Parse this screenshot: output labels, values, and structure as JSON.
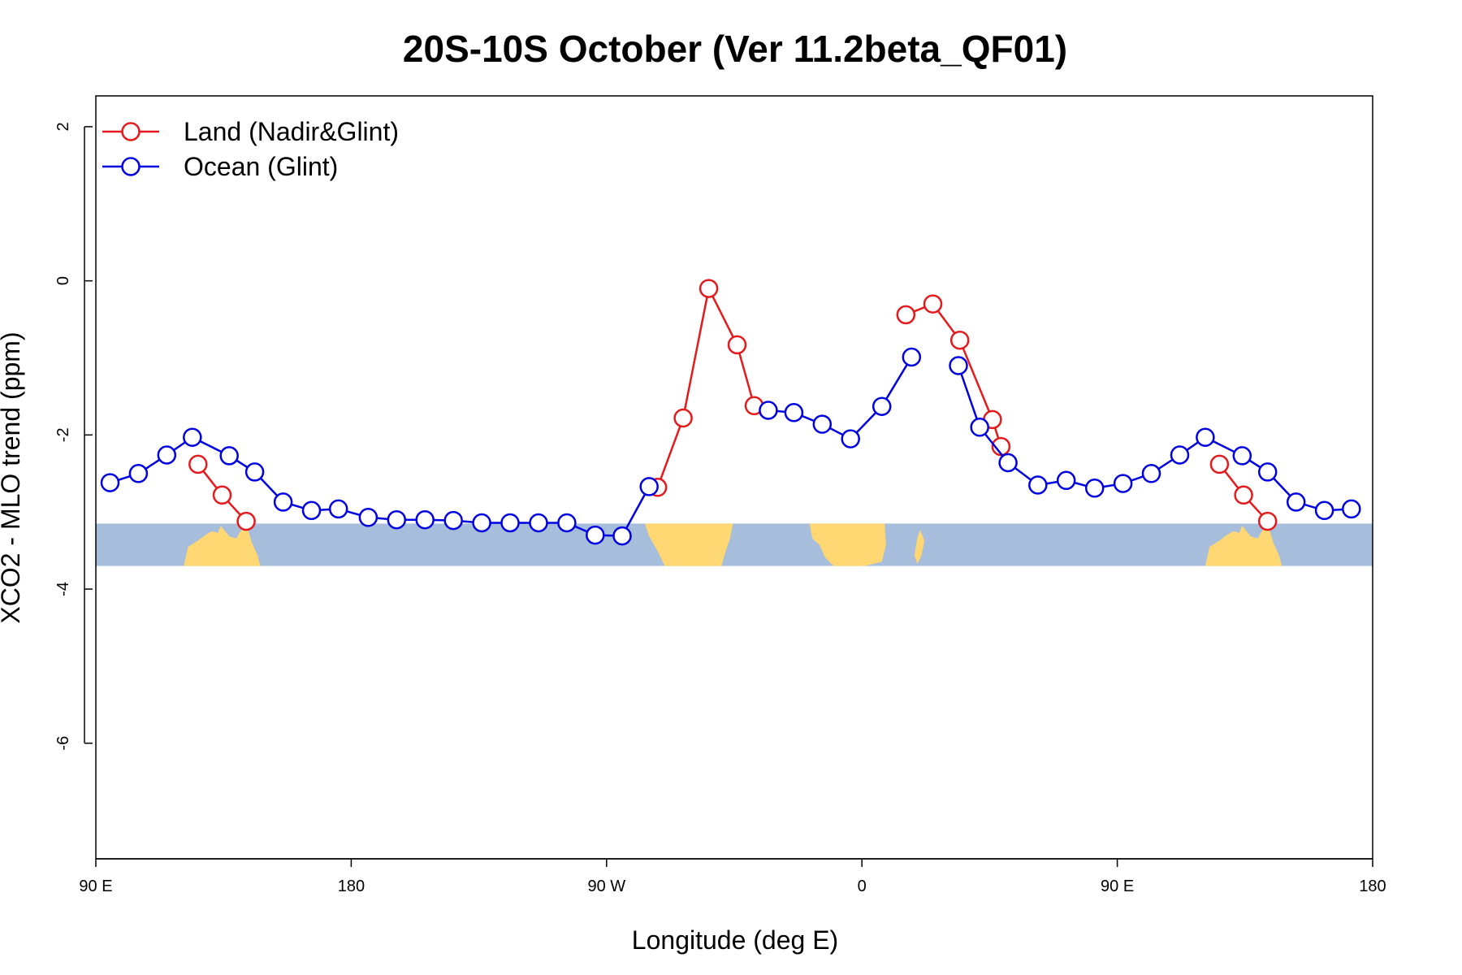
{
  "chart_data": {
    "type": "line",
    "title": "20S-10S October (Ver 11.2beta_QF01)",
    "xlabel": "Longitude (deg E)",
    "ylabel": "XCO2 - MLO trend (ppm)",
    "xlim": [
      90,
      540
    ],
    "ylim": [
      -7.5,
      2.4
    ],
    "x_ticks": [
      {
        "value": 90,
        "label": "90 E"
      },
      {
        "value": 180,
        "label": "180"
      },
      {
        "value": 270,
        "label": "90 W"
      },
      {
        "value": 360,
        "label": "0"
      },
      {
        "value": 450,
        "label": "90 E"
      },
      {
        "value": 540,
        "label": "180"
      }
    ],
    "y_ticks": [
      {
        "value": 2,
        "label": "2"
      },
      {
        "value": 0,
        "label": "0"
      },
      {
        "value": -2,
        "label": "-2"
      },
      {
        "value": -4,
        "label": "-4"
      },
      {
        "value": -6,
        "label": "-6"
      }
    ],
    "grid": false,
    "legend_position": "top-left",
    "map_strip": {
      "y_range": [
        -3.7,
        -3.15
      ],
      "ocean_color": "#a6bddb",
      "land_color": "#ffd773"
    },
    "series": [
      {
        "name": "Land (Nadir&Glint)",
        "color": "#e41a1c",
        "segments": [
          [
            [
              126,
              -2.38
            ],
            [
              134.5,
              -2.78
            ],
            [
              143,
              -3.12
            ]
          ],
          [
            [
              288,
              -2.68
            ],
            [
              297,
              -1.78
            ],
            [
              306,
              -0.1
            ],
            [
              316,
              -0.83
            ],
            [
              322,
              -1.62
            ]
          ],
          [
            [
              375.5,
              -0.44
            ],
            [
              385,
              -0.3
            ],
            [
              394.5,
              -0.77
            ],
            [
              406,
              -1.8
            ],
            [
              409,
              -2.15
            ]
          ],
          [
            [
              486,
              -2.38
            ],
            [
              494.5,
              -2.78
            ],
            [
              503,
              -3.12
            ]
          ]
        ]
      },
      {
        "name": "Ocean (Glint)",
        "color": "#0000e0",
        "segments": [
          [
            [
              95,
              -2.62
            ],
            [
              105,
              -2.5
            ],
            [
              115,
              -2.26
            ],
            [
              124,
              -2.03
            ],
            [
              137,
              -2.27
            ],
            [
              146,
              -2.48
            ],
            [
              156,
              -2.87
            ],
            [
              166,
              -2.98
            ],
            [
              175.5,
              -2.96
            ],
            [
              186,
              -3.07
            ],
            [
              196,
              -3.1
            ],
            [
              206,
              -3.1
            ],
            [
              216,
              -3.11
            ],
            [
              226,
              -3.14
            ],
            [
              236,
              -3.14
            ],
            [
              246,
              -3.14
            ],
            [
              256,
              -3.14
            ],
            [
              266,
              -3.3
            ],
            [
              275.5,
              -3.31
            ],
            [
              285,
              -2.67
            ]
          ],
          [
            [
              327,
              -1.68
            ],
            [
              336,
              -1.71
            ],
            [
              346,
              -1.86
            ],
            [
              356,
              -2.05
            ],
            [
              367,
              -1.63
            ],
            [
              377.5,
              -0.99
            ]
          ],
          [
            [
              394,
              -1.1
            ],
            [
              401.5,
              -1.9
            ],
            [
              411.5,
              -2.36
            ],
            [
              422,
              -2.65
            ],
            [
              432,
              -2.59
            ],
            [
              442,
              -2.69
            ],
            [
              452,
              -2.63
            ],
            [
              462,
              -2.5
            ],
            [
              472,
              -2.26
            ],
            [
              481,
              -2.03
            ],
            [
              494,
              -2.27
            ],
            [
              503,
              -2.48
            ],
            [
              513,
              -2.87
            ],
            [
              523,
              -2.98
            ],
            [
              532.5,
              -2.96
            ]
          ]
        ]
      }
    ]
  }
}
